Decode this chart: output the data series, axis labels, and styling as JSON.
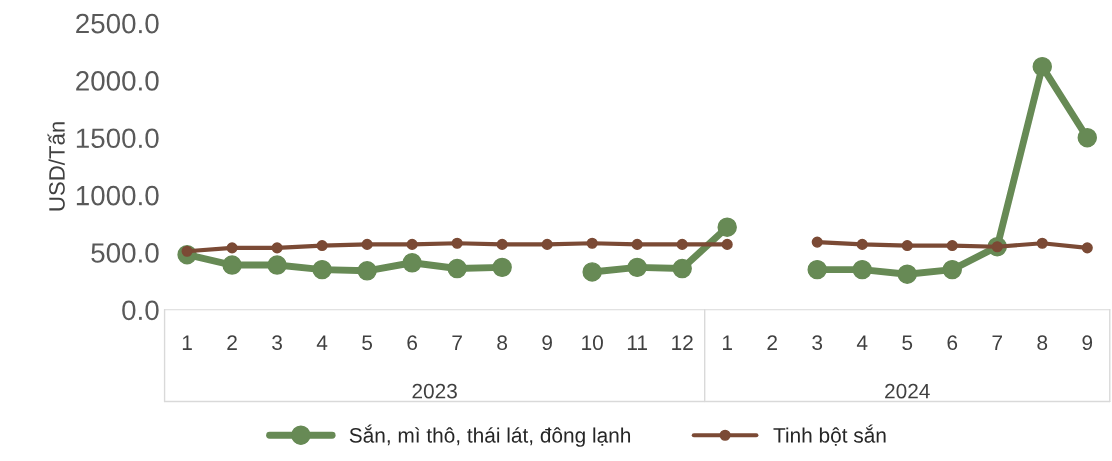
{
  "chart_data": {
    "type": "line",
    "ylabel": "USD/Tấn",
    "categories": [
      "1",
      "2",
      "3",
      "4",
      "5",
      "6",
      "7",
      "8",
      "9",
      "10",
      "11",
      "12",
      "1",
      "2",
      "3",
      "4",
      "5",
      "6",
      "7",
      "8",
      "9"
    ],
    "series": [
      {
        "name": "Sắn, mì thô, thái lát, đông lạnh",
        "color": "#678a55",
        "values": [
          480,
          390,
          390,
          350,
          340,
          410,
          360,
          370,
          null,
          330,
          370,
          360,
          720,
          null,
          350,
          350,
          310,
          350,
          550,
          2120,
          1500
        ]
      },
      {
        "name": "Tinh bột sắn",
        "color": "#7b4a35",
        "values": [
          510,
          540,
          540,
          560,
          570,
          570,
          580,
          570,
          570,
          580,
          570,
          570,
          570,
          null,
          590,
          570,
          560,
          560,
          550,
          580,
          540
        ]
      }
    ],
    "ylim": [
      0,
      2500
    ],
    "yticks": [
      {
        "value": 0,
        "label": "0.0"
      },
      {
        "value": 500,
        "label": "500.0"
      },
      {
        "value": 1000,
        "label": "1000.0"
      },
      {
        "value": 1500,
        "label": "1500.0"
      },
      {
        "value": 2000,
        "label": "2000.0"
      },
      {
        "value": 2500,
        "label": "2500.0"
      }
    ],
    "annotations": [
      "2023",
      "2024"
    ],
    "grid": false,
    "legend": "bottom",
    "marker": "circle",
    "line_style": "solid"
  }
}
